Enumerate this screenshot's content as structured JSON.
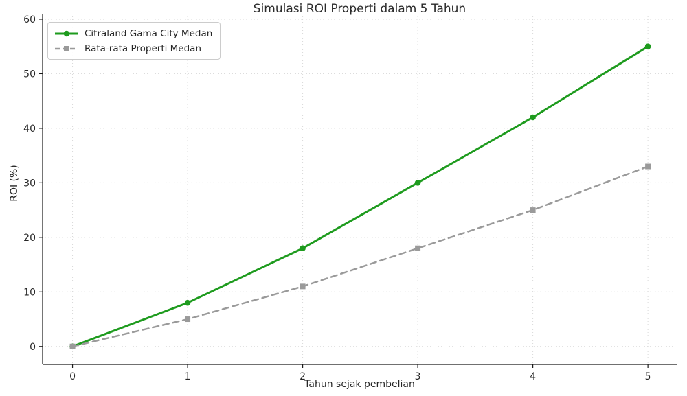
{
  "chart_data": {
    "type": "line",
    "title": "Simulasi ROI Properti dalam 5 Tahun",
    "xlabel": "Tahun sejak pembelian",
    "ylabel": "ROI (%)",
    "x": [
      0,
      1,
      2,
      3,
      4,
      5
    ],
    "series": [
      {
        "name": "Citraland Gama City Medan",
        "values": [
          0,
          8,
          18,
          30,
          42,
          55
        ],
        "color": "#1e9b1e",
        "linestyle": "solid",
        "linewidth": 3,
        "marker": "circle"
      },
      {
        "name": "Rata-rata Properti Medan",
        "values": [
          0,
          5,
          11,
          18,
          25,
          33
        ],
        "color": "#9a9a9a",
        "linestyle": "dashed",
        "linewidth": 2.5,
        "marker": "square"
      }
    ],
    "xticks": [
      0,
      1,
      2,
      3,
      4,
      5
    ],
    "yticks": [
      0,
      10,
      20,
      30,
      40,
      50,
      60
    ],
    "xlim": [
      -0.26,
      5.25
    ],
    "ylim": [
      -3.3,
      61
    ],
    "grid": true,
    "grid_style": "dotted",
    "legend_position": "upper left"
  },
  "colors": {
    "background": "#ffffff",
    "grid": "#d8d8d8",
    "spine": "#1a1a1a",
    "tick_label": "#262626",
    "title": "#2b2b2b"
  }
}
